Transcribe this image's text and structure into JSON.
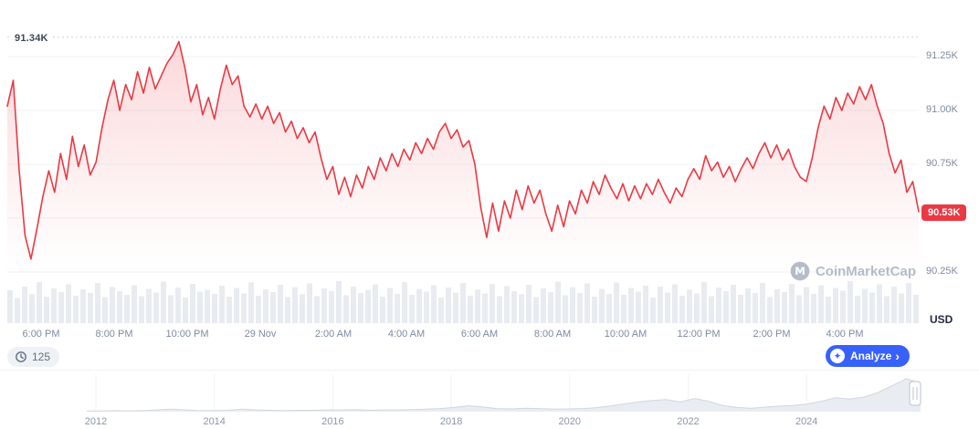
{
  "chart_data": {
    "type": "line",
    "title": "",
    "high_label": "91.34K",
    "high_value": 91.34,
    "current_price_label": "90.53K",
    "current_price_value": 90.53,
    "unit_label": "USD",
    "ylim": [
      90.2,
      91.45
    ],
    "y_axis": {
      "ticks": [
        {
          "label": "91.25K",
          "value": 91.25
        },
        {
          "label": "91.00K",
          "value": 91.0
        },
        {
          "label": "90.75K",
          "value": 90.75
        },
        {
          "label": "90.25K",
          "value": 90.25
        }
      ],
      "grid_values": [
        91.25,
        91.0,
        90.75,
        90.5,
        90.25
      ]
    },
    "x_axis_labels": [
      "6:00 PM",
      "8:00 PM",
      "10:00 PM",
      "29 Nov",
      "2:00 AM",
      "4:00 AM",
      "6:00 AM",
      "8:00 AM",
      "10:00 AM",
      "12:00 PM",
      "2:00 PM",
      "4:00 PM"
    ],
    "series": [
      {
        "name": "price",
        "values": [
          91.02,
          91.14,
          90.72,
          90.42,
          90.31,
          90.45,
          90.6,
          90.72,
          90.62,
          90.8,
          90.68,
          90.88,
          90.74,
          90.84,
          90.7,
          90.76,
          90.92,
          91.05,
          91.14,
          91.0,
          91.12,
          91.05,
          91.18,
          91.08,
          91.2,
          91.1,
          91.16,
          91.22,
          91.26,
          91.32,
          91.2,
          91.04,
          91.12,
          90.98,
          91.06,
          90.96,
          91.1,
          91.21,
          91.12,
          91.16,
          91.02,
          90.97,
          91.03,
          90.96,
          91.02,
          90.94,
          90.99,
          90.9,
          90.95,
          90.87,
          90.92,
          90.85,
          90.9,
          90.78,
          90.68,
          90.74,
          90.61,
          90.69,
          90.6,
          90.7,
          90.64,
          90.74,
          90.68,
          90.78,
          90.72,
          90.8,
          90.74,
          90.82,
          90.77,
          90.85,
          90.8,
          90.87,
          90.82,
          90.9,
          90.94,
          90.87,
          90.91,
          90.83,
          90.86,
          90.75,
          90.55,
          90.41,
          90.57,
          90.44,
          90.58,
          90.5,
          90.63,
          90.54,
          90.65,
          90.57,
          90.63,
          90.52,
          90.44,
          90.56,
          90.46,
          90.58,
          90.52,
          90.63,
          90.57,
          90.67,
          90.61,
          90.7,
          90.64,
          90.59,
          90.66,
          90.58,
          90.65,
          90.59,
          90.66,
          90.61,
          90.68,
          90.62,
          90.57,
          90.64,
          90.6,
          90.68,
          90.73,
          90.68,
          90.79,
          90.72,
          90.76,
          90.69,
          90.74,
          90.67,
          90.73,
          90.78,
          90.73,
          90.8,
          90.85,
          90.78,
          90.84,
          90.77,
          90.82,
          90.74,
          90.69,
          90.67,
          90.78,
          90.92,
          91.02,
          90.96,
          91.06,
          91.0,
          91.08,
          91.03,
          91.11,
          91.05,
          91.12,
          91.02,
          90.94,
          90.8,
          90.71,
          90.77,
          90.62,
          90.67,
          90.53
        ]
      }
    ],
    "volume": [
      0.72,
      0.55,
      0.8,
      0.63,
      0.9,
      0.58,
      0.76,
      0.68,
      0.85,
      0.6,
      0.74,
      0.66,
      0.88,
      0.57,
      0.79,
      0.7,
      0.62,
      0.83,
      0.59,
      0.75,
      0.67,
      0.91,
      0.61,
      0.78,
      0.56,
      0.86,
      0.69,
      0.73,
      0.64,
      0.82,
      0.58,
      0.77,
      0.65,
      0.89,
      0.6,
      0.74,
      0.68,
      0.84,
      0.57,
      0.79,
      0.63,
      0.87,
      0.59,
      0.76,
      0.7,
      0.92,
      0.61,
      0.8,
      0.66,
      0.73,
      0.85,
      0.58,
      0.77,
      0.64,
      0.9,
      0.62,
      0.75,
      0.69,
      0.83,
      0.56,
      0.78,
      0.67,
      0.88,
      0.6,
      0.74,
      0.65,
      0.86,
      0.59,
      0.81,
      0.7,
      0.63,
      0.84,
      0.57,
      0.76,
      0.68,
      0.91,
      0.61,
      0.79,
      0.66,
      0.87,
      0.58,
      0.75,
      0.64,
      0.89,
      0.62,
      0.77,
      0.69,
      0.82,
      0.56,
      0.8,
      0.67,
      0.85,
      0.6,
      0.73,
      0.65,
      0.9,
      0.59,
      0.78,
      0.7,
      0.84,
      0.62,
      0.76,
      0.66,
      0.88,
      0.57,
      0.74,
      0.68,
      0.86,
      0.61,
      0.79,
      0.64,
      0.83,
      0.58,
      0.77,
      0.71,
      0.92,
      0.6,
      0.75,
      0.67,
      0.85,
      0.59,
      0.8,
      0.65,
      0.88,
      0.62
    ],
    "navigator": {
      "values": [
        0.02,
        0.02,
        0.03,
        0.02,
        0.03,
        0.05,
        0.07,
        0.05,
        0.03,
        0.03,
        0.04,
        0.07,
        0.05,
        0.04,
        0.03,
        0.04,
        0.04,
        0.05,
        0.05,
        0.06,
        0.04,
        0.05,
        0.05,
        0.06,
        0.07,
        0.09,
        0.12,
        0.17,
        0.14,
        0.09,
        0.08,
        0.1,
        0.09,
        0.07,
        0.08,
        0.09,
        0.11,
        0.16,
        0.22,
        0.28,
        0.32,
        0.35,
        0.28,
        0.38,
        0.3,
        0.18,
        0.12,
        0.1,
        0.13,
        0.16,
        0.18,
        0.22,
        0.3,
        0.4,
        0.36,
        0.42,
        0.55,
        0.75,
        0.95,
        0.82
      ],
      "year_labels": [
        "2012",
        "2014",
        "2016",
        "2018",
        "2020",
        "2022",
        "2024"
      ]
    }
  },
  "controls": {
    "history_count": "125",
    "analyze_label": "Analyze",
    "analyze_chevron": "›",
    "ai_icon_glyph": "✦"
  },
  "watermark": {
    "text": "CoinMarketCap"
  },
  "colors": {
    "line": "#ea3943",
    "fill_top": "rgba(234,57,67,0.20)",
    "fill_bottom": "rgba(234,57,67,0)",
    "badge_bg": "#ea3943",
    "accent_blue": "#3861fb",
    "grid": "#f0f2f6",
    "dotted": "#c9d0da",
    "volume_bar": "#e8ebf0",
    "axis_text": "#7d8aa0",
    "nav_fill": "#e9edf2",
    "nav_stroke": "#cfd7e0",
    "nav_tick": "#f1f3f6",
    "handle_stroke": "#b9c2cf"
  }
}
